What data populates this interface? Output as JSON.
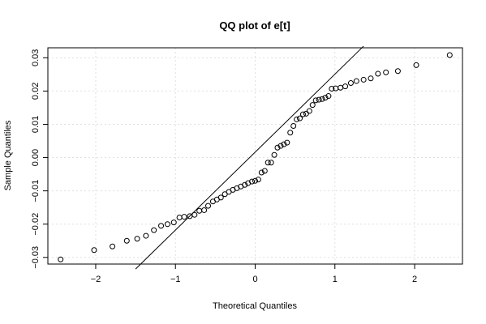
{
  "chart_data": {
    "type": "scatter",
    "title": "QQ plot of e[t]",
    "xlabel": "Theoretical Quantiles",
    "ylabel": "Sample Quantiles",
    "xlim": [
      -2.6,
      2.6
    ],
    "ylim": [
      -0.032,
      0.033
    ],
    "grid": true,
    "x_ticks": [
      -2,
      -1,
      0,
      1,
      2
    ],
    "x_tick_labels": [
      "−2",
      "−1",
      "0",
      "1",
      "2"
    ],
    "y_ticks": [
      -0.03,
      -0.02,
      -0.01,
      0.0,
      0.01,
      0.02,
      0.03
    ],
    "y_tick_labels": [
      "−0.03",
      "−0.02",
      "−0.01",
      "0.00",
      "0.01",
      "0.02",
      "0.03"
    ],
    "reference_line": {
      "type": "qqline",
      "points": [
        [
          -1.5,
          -0.0335
        ],
        [
          1.36,
          0.0335
        ]
      ]
    },
    "points": [
      [
        -2.44,
        -0.0306
      ],
      [
        -2.02,
        -0.0278
      ],
      [
        -1.79,
        -0.0267
      ],
      [
        -1.61,
        -0.025
      ],
      [
        -1.48,
        -0.0244
      ],
      [
        -1.37,
        -0.0235
      ],
      [
        -1.27,
        -0.0218
      ],
      [
        -1.18,
        -0.0205
      ],
      [
        -1.1,
        -0.02
      ],
      [
        -1.02,
        -0.0195
      ],
      [
        -0.95,
        -0.018
      ],
      [
        -0.89,
        -0.0178
      ],
      [
        -0.82,
        -0.0176
      ],
      [
        -0.76,
        -0.0172
      ],
      [
        -0.7,
        -0.016
      ],
      [
        -0.64,
        -0.0158
      ],
      [
        -0.59,
        -0.0145
      ],
      [
        -0.53,
        -0.0132
      ],
      [
        -0.48,
        -0.0126
      ],
      [
        -0.43,
        -0.012
      ],
      [
        -0.38,
        -0.011
      ],
      [
        -0.33,
        -0.0103
      ],
      [
        -0.28,
        -0.0097
      ],
      [
        -0.23,
        -0.0092
      ],
      [
        -0.18,
        -0.0087
      ],
      [
        -0.13,
        -0.0082
      ],
      [
        -0.09,
        -0.0077
      ],
      [
        -0.04,
        -0.0072
      ],
      [
        0.0,
        -0.007
      ],
      [
        0.04,
        -0.0066
      ],
      [
        0.08,
        -0.0045
      ],
      [
        0.12,
        -0.004
      ],
      [
        0.16,
        -0.0015
      ],
      [
        0.2,
        -0.0015
      ],
      [
        0.24,
        0.0008
      ],
      [
        0.28,
        0.003
      ],
      [
        0.32,
        0.0035
      ],
      [
        0.36,
        0.004
      ],
      [
        0.4,
        0.0045
      ],
      [
        0.44,
        0.0075
      ],
      [
        0.48,
        0.0095
      ],
      [
        0.52,
        0.0115
      ],
      [
        0.56,
        0.0118
      ],
      [
        0.6,
        0.013
      ],
      [
        0.64,
        0.0132
      ],
      [
        0.68,
        0.014
      ],
      [
        0.72,
        0.0158
      ],
      [
        0.76,
        0.0172
      ],
      [
        0.8,
        0.0174
      ],
      [
        0.84,
        0.0176
      ],
      [
        0.88,
        0.018
      ],
      [
        0.92,
        0.0185
      ],
      [
        0.96,
        0.0207
      ],
      [
        1.01,
        0.0208
      ],
      [
        1.07,
        0.021
      ],
      [
        1.13,
        0.0214
      ],
      [
        1.2,
        0.0224
      ],
      [
        1.27,
        0.023
      ],
      [
        1.36,
        0.0234
      ],
      [
        1.45,
        0.0238
      ],
      [
        1.54,
        0.0252
      ],
      [
        1.64,
        0.0256
      ],
      [
        1.79,
        0.026
      ],
      [
        2.02,
        0.0278
      ],
      [
        2.44,
        0.0308
      ]
    ]
  }
}
